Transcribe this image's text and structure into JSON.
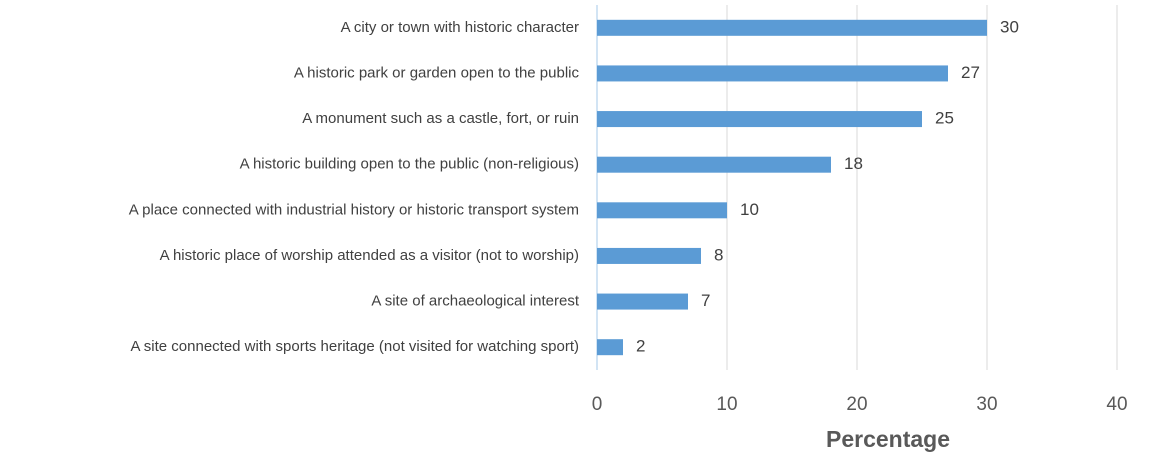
{
  "chart_data": {
    "type": "bar",
    "orientation": "horizontal",
    "categories": [
      "A city or town with historic character",
      "A historic park or garden open to the public",
      "A monument such as a castle, fort, or ruin",
      "A historic building open to the public (non-religious)",
      "A place connected with industrial history or historic transport system",
      "A historic place of worship attended as a visitor (not to worship)",
      "A site of archaeological interest",
      "A site connected with sports heritage (not visited for watching sport)"
    ],
    "values": [
      30,
      27,
      25,
      18,
      10,
      8,
      7,
      2
    ],
    "color": "#5b9bd5",
    "xlabel": "Percentage",
    "xlim": [
      0,
      40
    ],
    "xticks": [
      0,
      10,
      20,
      30,
      40
    ],
    "grid": true
  }
}
